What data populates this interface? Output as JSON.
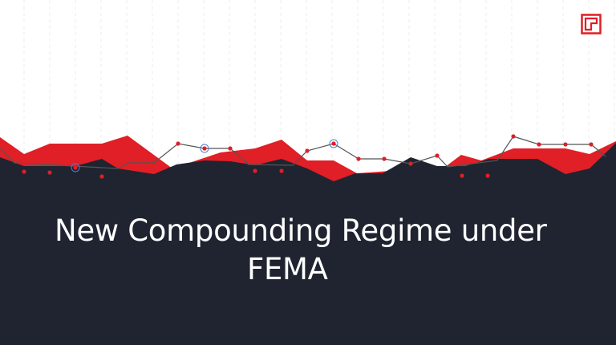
{
  "slide": {
    "title_line1": "New Compounding Regime under",
    "title_line2": "FEMA"
  },
  "colors": {
    "background": "#ffffff",
    "dark_band": "#1f2430",
    "accent_red": "#e01f26",
    "highlight_ring": "#4a7fd6",
    "title_text": "#ffffff"
  },
  "icons": {
    "logo": "square-g-logo"
  }
}
